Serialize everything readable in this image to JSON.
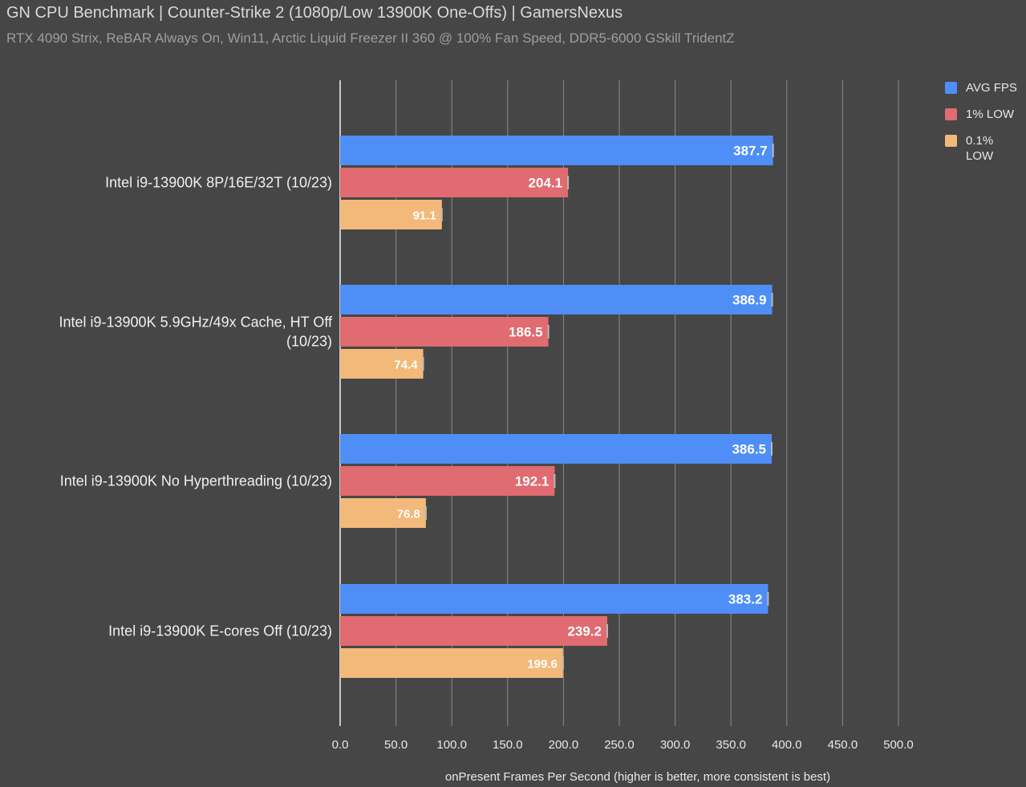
{
  "title": "GN CPU Benchmark | Counter-Strike 2 (1080p/Low 13900K One-Offs) | GamersNexus",
  "subtitle": "RTX 4090 Strix, ReBAR Always On, Win11, Arctic Liquid Freezer II 360 @ 100% Fan Speed, DDR5-6000 GSkill TridentZ",
  "chart_data": {
    "type": "bar",
    "orientation": "horizontal",
    "title": "GN CPU Benchmark | Counter-Strike 2 (1080p/Low 13900K One-Offs) | GamersNexus",
    "subtitle": "RTX 4090 Strix, ReBAR Always On, Win11, Arctic Liquid Freezer II 360 @ 100% Fan Speed, DDR5-6000 GSkill TridentZ",
    "xlabel": "onPresent Frames Per Second (higher is better, more consistent is best)",
    "ylabel": "",
    "xlim": [
      0,
      500
    ],
    "ticks": [
      "0.0",
      "50.0",
      "100.0",
      "150.0",
      "200.0",
      "250.0",
      "300.0",
      "350.0",
      "400.0",
      "450.0",
      "500.0"
    ],
    "grid": true,
    "legend_position": "top-right",
    "categories": [
      [
        "Intel i9-13900K 8P/16E/32T (10/23)"
      ],
      [
        "Intel i9-13900K 5.9GHz/49x Cache, HT Off",
        "(10/23)"
      ],
      [
        "Intel i9-13900K No Hyperthreading (10/23)"
      ],
      [
        "Intel i9-13900K E-cores Off (10/23)"
      ]
    ],
    "series": [
      {
        "name": "AVG FPS",
        "color": "#4f8ef6",
        "values": [
          387.7,
          386.9,
          386.5,
          383.2
        ],
        "labels": [
          "387.7",
          "386.9",
          "386.5",
          "383.2"
        ]
      },
      {
        "name": "1% LOW",
        "color": "#e06b70",
        "values": [
          204.1,
          186.5,
          192.1,
          239.2
        ],
        "labels": [
          "204.1",
          "186.5",
          "192.1",
          "239.2"
        ]
      },
      {
        "name": "0.1% LOW",
        "color": "#f2b97a",
        "values": [
          91.1,
          74.4,
          76.8,
          199.6
        ],
        "labels": [
          "91.1",
          "74.4",
          "76.8",
          "199.6"
        ]
      }
    ]
  }
}
